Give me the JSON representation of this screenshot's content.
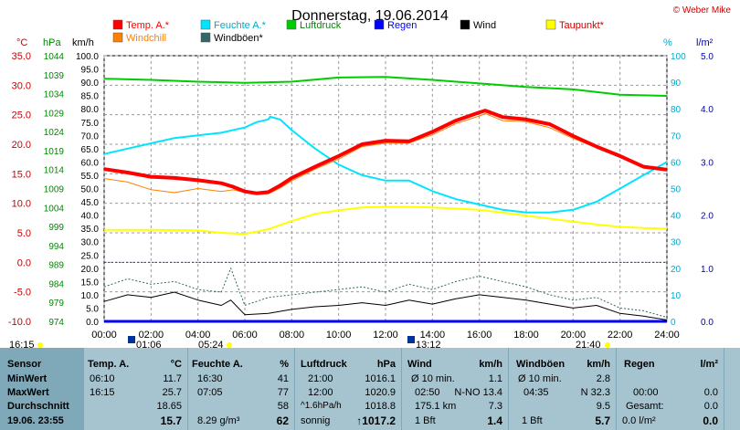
{
  "title": "Donnerstag, 19.06.2014",
  "credit": "© Weber Mike",
  "axes": {
    "temp_unit": "°C",
    "hpa_unit": "hPa",
    "wind_unit": "km/h",
    "pct_unit": "%",
    "rain_unit": "l/m²",
    "temp_ticks": [
      "35.0",
      "30.0",
      "25.0",
      "20.0",
      "15.0",
      "10.0",
      "5.0",
      "0.0",
      "-5.0",
      "-10.0"
    ],
    "hpa_ticks": [
      "1044",
      "1039",
      "1034",
      "1029",
      "1024",
      "1019",
      "1014",
      "1009",
      "1004",
      "999",
      "994",
      "989",
      "984",
      "979",
      "974"
    ],
    "wind_ticks": [
      "100.0",
      "95.0",
      "90.0",
      "85.0",
      "80.0",
      "75.0",
      "70.0",
      "65.0",
      "60.0",
      "55.0",
      "50.0",
      "45.0",
      "40.0",
      "35.0",
      "30.0",
      "25.0",
      "20.0",
      "15.0",
      "10.0",
      "5.0",
      "0.0"
    ],
    "pct_ticks": [
      "100",
      "90",
      "80",
      "70",
      "60",
      "50",
      "40",
      "30",
      "20",
      "10",
      "0"
    ],
    "rain_ticks": [
      "5.0",
      "4.0",
      "3.0",
      "2.0",
      "1.0",
      "0.0"
    ],
    "x_ticks": [
      "00:00",
      "02:00",
      "04:00",
      "06:00",
      "08:00",
      "10:00",
      "12:00",
      "14:00",
      "16:00",
      "18:00",
      "20:00",
      "22:00",
      "24:00"
    ]
  },
  "legend": [
    {
      "label": "Temp. A.*",
      "color": "#ff0000"
    },
    {
      "label": "Feuchte A.*",
      "color": "#00e5ff"
    },
    {
      "label": "Luftdruck",
      "color": "#00cc00"
    },
    {
      "label": "Regen",
      "color": "#0000ff"
    },
    {
      "label": "Wind",
      "color": "#000000"
    },
    {
      "label": "Taupunkt*",
      "color": "#ffff00"
    },
    {
      "label": "Windchill",
      "color": "#ff8000"
    },
    {
      "label": "Windböen*",
      "color": "#336666"
    }
  ],
  "markers": {
    "t1": "16:15",
    "t2": "01:06",
    "t3": "05:24",
    "t4": "13:12",
    "t5": "21:40"
  },
  "chart_data": {
    "type": "line",
    "x_unit": "hour",
    "xlim": [
      0,
      24
    ],
    "series": [
      {
        "name": "Temp. A.*",
        "axis": "°C",
        "color": "#ff0000",
        "x": [
          0,
          1,
          2,
          3,
          4,
          5,
          5.5,
          6,
          6.5,
          7,
          7.5,
          8,
          9,
          10,
          11,
          12,
          13,
          14,
          15,
          16,
          16.25,
          17,
          18,
          19,
          20,
          21,
          22,
          23,
          24
        ],
        "y": [
          15.8,
          15.2,
          14.5,
          14.3,
          13.9,
          13.4,
          12.8,
          12.0,
          11.7,
          11.9,
          13.0,
          14.3,
          16.2,
          18.0,
          20.0,
          20.6,
          20.5,
          22.1,
          24.0,
          25.4,
          25.7,
          24.6,
          24.2,
          23.4,
          21.4,
          19.6,
          18.0,
          16.2,
          15.7
        ]
      },
      {
        "name": "Windchill",
        "axis": "°C",
        "color": "#ff8000",
        "x": [
          0,
          1,
          2,
          3,
          4,
          5,
          5.5,
          6,
          6.5,
          7,
          7.5,
          8,
          9,
          10,
          11,
          12,
          13,
          14,
          15,
          16,
          16.25,
          17,
          18,
          19,
          20,
          21,
          22,
          23,
          24
        ],
        "y": [
          14.2,
          13.6,
          12.3,
          11.8,
          12.5,
          12.0,
          12.3,
          11.8,
          11.5,
          11.6,
          12.6,
          13.8,
          15.8,
          17.5,
          19.6,
          20.2,
          20.2,
          21.6,
          23.5,
          24.8,
          25.2,
          24.0,
          23.8,
          22.8,
          21.0,
          19.4,
          17.8,
          16.0,
          15.5
        ]
      },
      {
        "name": "Feuchte A.*",
        "axis": "%",
        "color": "#00e5ff",
        "x": [
          0,
          1,
          2,
          3,
          4,
          5,
          6,
          6.5,
          7,
          7.08,
          7.5,
          8,
          9,
          10,
          11,
          12,
          13,
          14,
          15,
          16,
          17,
          18,
          19,
          20,
          21,
          22,
          23,
          24
        ],
        "y": [
          63,
          65,
          67,
          69,
          70,
          71,
          73,
          75,
          76,
          77,
          76,
          72,
          65,
          59,
          55,
          53,
          53,
          49,
          46,
          44,
          42,
          41,
          41,
          42,
          45,
          50,
          55,
          60
        ]
      },
      {
        "name": "Luftdruck",
        "axis": "hPa",
        "color": "#00cc00",
        "x": [
          0,
          2,
          4,
          6,
          8,
          10,
          12,
          14,
          16,
          18,
          20,
          22,
          24
        ],
        "y": [
          1020.1,
          1019.9,
          1019.6,
          1019.4,
          1019.6,
          1020.3,
          1020.4,
          1019.9,
          1019.3,
          1018.7,
          1018.3,
          1017.4,
          1017.2
        ]
      },
      {
        "name": "Taupunkt*",
        "axis": "°C",
        "color": "#ffff00",
        "x": [
          0,
          2,
          4,
          5,
          6,
          7,
          8,
          9,
          10,
          11,
          12,
          13,
          14,
          15,
          16,
          17,
          18,
          19,
          20,
          21,
          22,
          23,
          24
        ],
        "y": [
          5.5,
          5.5,
          5.4,
          5.0,
          4.8,
          5.6,
          7.0,
          8.2,
          8.8,
          9.3,
          9.4,
          9.4,
          9.3,
          9.1,
          8.9,
          8.4,
          7.9,
          7.4,
          6.9,
          6.4,
          6.0,
          5.8,
          5.7
        ]
      },
      {
        "name": "Wind",
        "axis": "km/h",
        "color": "#000000",
        "x": [
          0,
          1,
          2,
          3,
          4,
          5,
          5.4,
          6,
          7,
          8,
          9,
          10,
          11,
          12,
          13,
          14,
          15,
          16,
          17,
          18,
          19,
          20,
          21,
          22,
          23,
          24
        ],
        "y": [
          7.5,
          10,
          9,
          11,
          8,
          6,
          8,
          2.5,
          3,
          4.5,
          5.5,
          6,
          7,
          6,
          8,
          6.5,
          8.5,
          10,
          9,
          8,
          6.5,
          5,
          6,
          3,
          2,
          0.5
        ]
      },
      {
        "name": "Windböen*",
        "axis": "km/h",
        "color": "#336666",
        "x": [
          0,
          1,
          2,
          3,
          4,
          5,
          5.4,
          6,
          7,
          8,
          9,
          10,
          11,
          12,
          13,
          14,
          15,
          16,
          17,
          18,
          19,
          20,
          21,
          22,
          23,
          24
        ],
        "y": [
          13,
          16,
          14,
          15,
          12,
          11,
          20,
          6,
          9,
          10,
          11,
          12,
          13,
          11,
          14,
          12,
          15,
          17,
          15,
          13,
          10,
          8,
          9,
          5,
          4,
          1.5
        ]
      },
      {
        "name": "Regen",
        "axis": "l/m²",
        "color": "#0000ff",
        "x": [
          0,
          24
        ],
        "y": [
          0,
          0
        ]
      }
    ],
    "axes": {
      "temp": {
        "label": "°C",
        "range": [
          -10,
          35
        ]
      },
      "pressure": {
        "label": "hPa",
        "range": [
          974,
          1045
        ]
      },
      "wind": {
        "label": "km/h",
        "range": [
          0,
          100
        ]
      },
      "humidity": {
        "label": "%",
        "range": [
          0,
          100
        ]
      },
      "rain": {
        "label": "l/m²",
        "range": [
          0,
          5
        ]
      }
    },
    "grid": true,
    "legend_position": "top"
  },
  "table": {
    "rows": [
      "Sensor",
      "MinWert",
      "MaxWert",
      "Durchschnitt",
      "19.06.  23:55"
    ],
    "temp": {
      "hdr": "Temp. A.",
      "unit": "°C",
      "min_t": "06:10",
      "min_v": "11.7",
      "max_t": "16:15",
      "max_v": "25.7",
      "avg": "18.65",
      "cur": "15.7"
    },
    "hum": {
      "hdr": "Feuchte A.",
      "unit": "%",
      "min_t": "16:30",
      "min_v": "41",
      "max_t": "07:05",
      "max_v": "77",
      "avg": "58",
      "abs": "8.29 g/m³",
      "cur": "62"
    },
    "press": {
      "hdr": "Luftdruck",
      "unit": "hPa",
      "min_t": "21:00",
      "min_v": "1016.1",
      "max_t": "12:00",
      "max_v": "1020.9",
      "trend": "^1.6hPa/h",
      "avg": "1018.8",
      "cond": "sonnig",
      "cur": "↑1017.2"
    },
    "wind": {
      "hdr": "Wind",
      "unit": "km/h",
      "r1a": "Ø 10 min.",
      "r1b": "1.1",
      "r2a": "02:50",
      "r2b": "N-NO 13.4",
      "r3a": "175.1 km",
      "r3b": "7.3",
      "r4a": "1 Bft",
      "r4b": "1.4"
    },
    "gust": {
      "hdr": "Windböen",
      "unit": "km/h",
      "r1a": "Ø 10 min.",
      "r1b": "2.8",
      "r2a": "04:35",
      "r2b": "N 32.3",
      "r3b": "9.5",
      "r4a": "1 Bft",
      "r4b": "5.7"
    },
    "rain": {
      "hdr": "Regen",
      "unit": "l/m²",
      "r2a": "00:00",
      "r2b": "0.0",
      "r3a": "Gesamt:",
      "r3b": "0.0",
      "r4a": "0.0 l/m²",
      "r4b": "0.0"
    }
  }
}
